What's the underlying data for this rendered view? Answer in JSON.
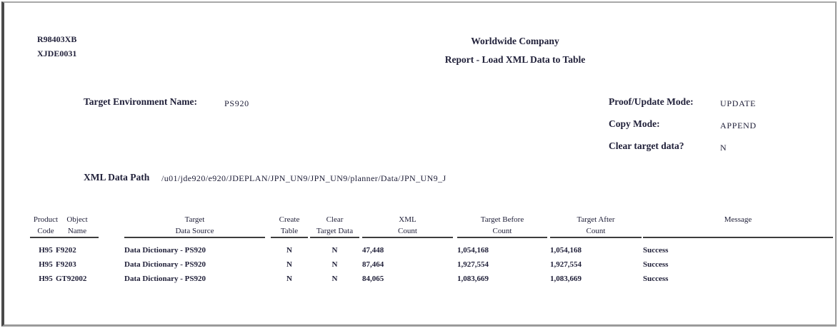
{
  "page": {
    "report_id": "R98403XB",
    "report_version": "XJDE0031",
    "company": "Worldwide Company",
    "title": "Report - Load XML Data to Table"
  },
  "fields": {
    "target_environment": {
      "label": "Target Environment Name:",
      "value": "PS920"
    },
    "proof_update_mode": {
      "label": "Proof/Update Mode:",
      "value": "UPDATE"
    },
    "copy_mode": {
      "label": "Copy Mode:",
      "value": "APPEND"
    },
    "clear_target_data": {
      "label": "Clear target data?",
      "value": "N"
    },
    "xml_data_path": {
      "label": "XML Data Path",
      "value": "/u01/jde920/e920/JDEPLAN/JPN_UN9/JPN_UN9/planner/Data/JPN_UN9_J"
    }
  },
  "table": {
    "columns": [
      {
        "line1": "Product",
        "line2": "Code"
      },
      {
        "line1": "Object",
        "line2": "Name"
      },
      {
        "line1": "Target",
        "line2": "Data Source"
      },
      {
        "line1": "Create",
        "line2": "Table"
      },
      {
        "line1": "Clear",
        "line2": "Target Data"
      },
      {
        "line1": "XML",
        "line2": "Count"
      },
      {
        "line1": "Target Before",
        "line2": "Count"
      },
      {
        "line1": "Target After",
        "line2": "Count"
      },
      {
        "line1": "Message",
        "line2": ""
      }
    ],
    "rows": [
      [
        "H95",
        "F9202",
        "Data Dictionary - PS920",
        "N",
        "N",
        "47,448",
        "1,054,168",
        "1,054,168",
        "Success"
      ],
      [
        "H95",
        "F9203",
        "Data Dictionary - PS920",
        "N",
        "N",
        "87,464",
        "1,927,554",
        "1,927,554",
        "Success"
      ],
      [
        "H95",
        "GT92002",
        "Data Dictionary - PS920",
        "N",
        "N",
        "84,065",
        "1,083,669",
        "1,083,669",
        "Success"
      ]
    ]
  }
}
